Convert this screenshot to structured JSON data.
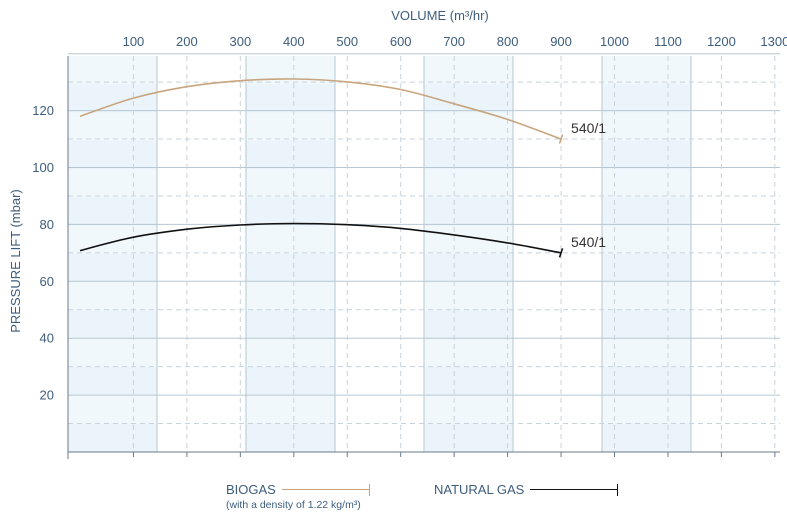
{
  "chart_data": {
    "type": "line",
    "xlabel": "VOLUME (m³/hr)",
    "ylabel": "PRESSURE LIFT (mbar)",
    "xlim": [
      0,
      1330
    ],
    "ylim": [
      0,
      140
    ],
    "x_ticks": [
      100,
      200,
      300,
      400,
      500,
      600,
      700,
      800,
      900,
      1000,
      1100,
      1200,
      1300
    ],
    "y_ticks": [
      20,
      40,
      60,
      80,
      100,
      120
    ],
    "x_axis_position": "top",
    "grid": true,
    "legend_placement": "bottom",
    "series": [
      {
        "name": "BIOGAS",
        "color": "#c8a57e",
        "end_label": "540/1",
        "x": [
          0,
          100,
          200,
          300,
          400,
          500,
          600,
          700,
          800,
          900
        ],
        "y": [
          118,
          124.4,
          128.4,
          130.5,
          131.1,
          130.1,
          127.4,
          122.4,
          116.9,
          110
        ]
      },
      {
        "name": "NATURAL GAS",
        "color": "#111111",
        "end_label": "540/1",
        "x": [
          0,
          100,
          200,
          300,
          400,
          500,
          600,
          700,
          800,
          900
        ],
        "y": [
          70.8,
          75.5,
          78.3,
          79.8,
          80.3,
          79.9,
          78.6,
          76.3,
          73.5,
          70
        ]
      }
    ],
    "legend_note": "(with a density of 1.22 kg/m³)"
  }
}
